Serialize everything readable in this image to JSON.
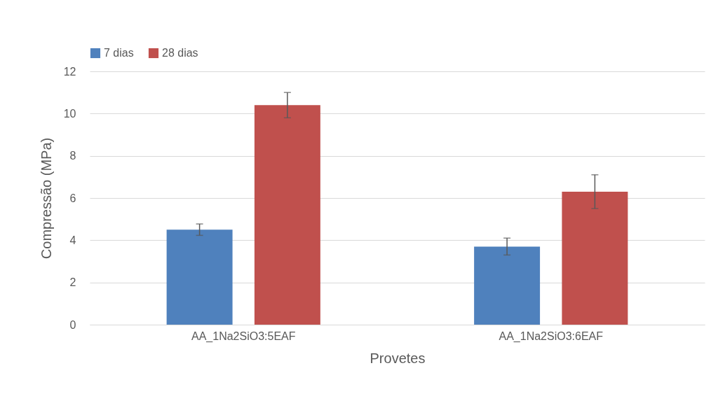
{
  "chart_data": {
    "type": "bar",
    "xlabel": "Provetes",
    "ylabel": "Compressão (MPa)",
    "categories": [
      "AA_1Na2SiO3:5EAF",
      "AA_1Na2SiO3:6EAF"
    ],
    "series": [
      {
        "name": "7 dias",
        "color": "#4f81bd",
        "values": [
          4.5,
          3.7
        ],
        "errors": [
          0.27,
          0.4
        ]
      },
      {
        "name": "28 dias",
        "color": "#c0504d",
        "values": [
          10.4,
          6.3
        ],
        "errors": [
          0.6,
          0.8
        ]
      }
    ],
    "ylim": [
      0,
      12
    ],
    "yticks": [
      0,
      2,
      4,
      6,
      8,
      10,
      12
    ],
    "grid": "y",
    "legend": "top"
  }
}
